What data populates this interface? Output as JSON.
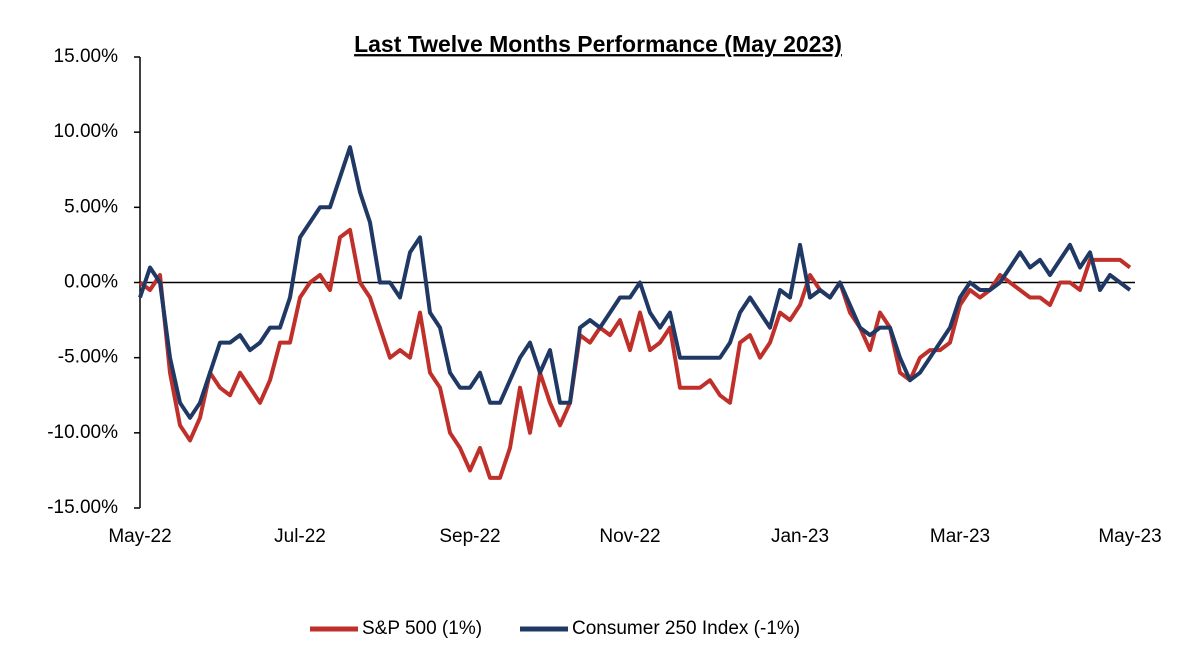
{
  "chart_data": {
    "type": "line",
    "title": "Last Twelve Months Performance (May 2023)",
    "categories": [
      "May-22",
      null,
      null,
      null,
      null,
      null,
      null,
      null,
      null,
      null,
      null,
      null,
      null,
      null,
      null,
      null,
      "Jul-22",
      null,
      null,
      null,
      null,
      null,
      null,
      null,
      null,
      null,
      null,
      null,
      null,
      null,
      null,
      null,
      null,
      "Sep-22",
      null,
      null,
      null,
      null,
      null,
      null,
      null,
      null,
      null,
      null,
      null,
      null,
      null,
      null,
      null,
      "Nov-22",
      null,
      null,
      null,
      null,
      null,
      null,
      null,
      null,
      null,
      null,
      null,
      null,
      null,
      null,
      null,
      null,
      "Jan-23",
      null,
      null,
      null,
      null,
      null,
      null,
      null,
      null,
      null,
      null,
      null,
      null,
      null,
      null,
      null,
      "Mar-23",
      null,
      null,
      null,
      null,
      null,
      null,
      null,
      null,
      null,
      null,
      null,
      null,
      null,
      null,
      null,
      null,
      "May-23"
    ],
    "ylim": [
      -15,
      15
    ],
    "yticks": [
      {
        "value": -15,
        "label": "-15.00%"
      },
      {
        "value": -10,
        "label": "-10.00%"
      },
      {
        "value": -5,
        "label": "-5.00%"
      },
      {
        "value": 0,
        "label": "0.00%"
      },
      {
        "value": 5,
        "label": "5.00%"
      },
      {
        "value": 10,
        "label": "10.00%"
      },
      {
        "value": 15,
        "label": "15.00%"
      }
    ],
    "grid": false,
    "legend": "bottom",
    "series": [
      {
        "name": "S&P 500 (1%)",
        "color": "#c0302b",
        "values": [
          0,
          -0.5,
          0.5,
          -6,
          -9.5,
          -10.5,
          -9,
          -6,
          -7,
          -7.5,
          -6,
          -7,
          -8,
          -6.5,
          -4,
          -4,
          -1,
          0,
          0.5,
          -0.5,
          3,
          3.5,
          0,
          -1,
          -3,
          -5,
          -4.5,
          -5,
          -2,
          -6,
          -7,
          -10,
          -11,
          -12.5,
          -11,
          -13,
          -13,
          -11,
          -7,
          -10,
          -6,
          -8,
          -9.5,
          -8,
          -3.5,
          -4,
          -3,
          -3.5,
          -2.5,
          -4.5,
          -2,
          -4.5,
          -4,
          -3,
          -7,
          -7,
          -7,
          -6.5,
          -7.5,
          -8,
          -4,
          -3.5,
          -5,
          -4,
          -2,
          -2.5,
          -1.5,
          0.5,
          -0.5,
          -1,
          0,
          -2,
          -3,
          -4.5,
          -2,
          -3,
          -6,
          -6.5,
          -5,
          -4.5,
          -4.5,
          -4,
          -1.5,
          -0.5,
          -1,
          -0.5,
          0.5,
          0,
          -0.5,
          -1,
          -1,
          -1.5,
          0,
          0,
          -0.5,
          1.5,
          1.5,
          1.5,
          1.5,
          1
        ]
      },
      {
        "name": "Consumer 250 Index (-1%)",
        "color": "#1f3864",
        "values": [
          -1,
          1,
          0,
          -5,
          -8,
          -9,
          -8,
          -6,
          -4,
          -4,
          -3.5,
          -4.5,
          -4,
          -3,
          -3,
          -1,
          3,
          4,
          5,
          5,
          7,
          9,
          6,
          4,
          0,
          0,
          -1,
          2,
          3,
          -2,
          -3,
          -6,
          -7,
          -7,
          -6,
          -8,
          -8,
          -6.5,
          -5,
          -4,
          -6,
          -4.5,
          -8,
          -8,
          -3,
          -2.5,
          -3,
          -2,
          -1,
          -1,
          0,
          -2,
          -3,
          -2,
          -5,
          -5,
          -5,
          -5,
          -5,
          -4,
          -2,
          -1,
          -2,
          -3,
          -0.5,
          -1,
          2.5,
          -1,
          -0.5,
          -1,
          0,
          -1.5,
          -3,
          -3.5,
          -3,
          -3,
          -5,
          -6.5,
          -6,
          -5,
          -4,
          -3,
          -1,
          0,
          -0.5,
          -0.5,
          0,
          1,
          2,
          1,
          1.5,
          0.5,
          1.5,
          2.5,
          1,
          2,
          -0.5,
          0.5,
          0,
          -0.5
        ]
      }
    ]
  }
}
